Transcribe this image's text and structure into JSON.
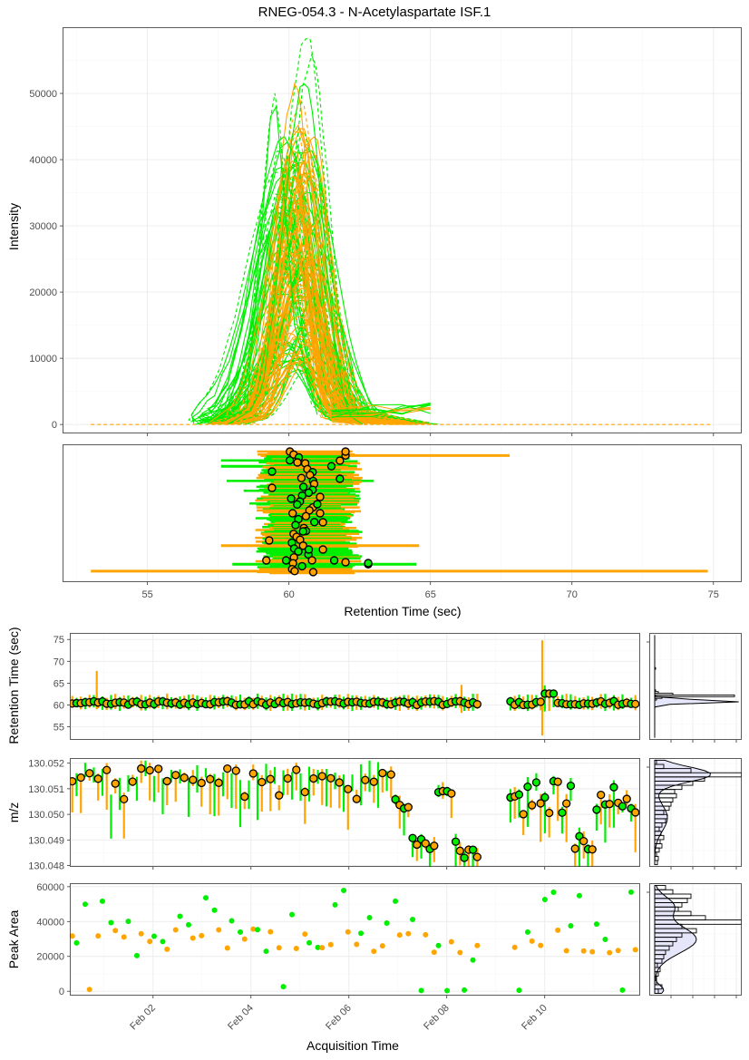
{
  "title": "RNEG-054.3 - N-Acetylaspartate ISF.1",
  "colors": {
    "orange": "#FFA500",
    "green": "#00EE00",
    "panel_border": "#333333",
    "grid_major": "#EBEBEB",
    "grid_minor": "#F5F5F5",
    "density_fill": "#E6E6FA"
  },
  "chart_data": [
    {
      "id": "chromatogram",
      "type": "line",
      "ylabel": "Intensity",
      "xlim": [
        52,
        76
      ],
      "ylim": [
        0,
        60000
      ],
      "yticks": [
        "0",
        "10000",
        "20000",
        "30000",
        "40000",
        "50000"
      ],
      "ytick_values": [
        0,
        10000,
        20000,
        30000,
        40000,
        50000
      ],
      "grid": true,
      "series": [
        {
          "color": "orange",
          "count": 55,
          "apex_rt_range": [
            59.9,
            60.9
          ],
          "apex_intensity_range": [
            9000,
            51000
          ],
          "width_sec": 1.05
        },
        {
          "color": "green",
          "count": 70,
          "apex_rt_range": [
            59.6,
            61.0
          ],
          "apex_intensity_range": [
            8000,
            58500
          ],
          "width_sec": 1.0
        },
        {
          "color": "green",
          "dashed": true,
          "peak_rt": 59.5,
          "peak_intensity": 50000
        },
        {
          "color": "green",
          "dashed": true,
          "peak_rt": 60.6,
          "peak_intensity": 58500
        },
        {
          "color": "orange",
          "dashed": true,
          "baseline_from": 53.0,
          "baseline_to": 74.9,
          "baseline_intensity": 0
        }
      ]
    },
    {
      "id": "rt_ranges",
      "type": "scatter",
      "xlabel": "Retention Time (sec)",
      "xlim": [
        52,
        76
      ],
      "xticks": [
        "55",
        "60",
        "65",
        "70",
        "75"
      ],
      "xtick_values": [
        55,
        60,
        65,
        70,
        75
      ],
      "description_of_marks": "each sample: horizontal bar = integration range (start to end RT), point = apex RT",
      "outlier_ranges": [
        {
          "color": "orange",
          "start": 59.0,
          "end": 67.8,
          "apex": 62.0
        },
        {
          "color": "orange",
          "start": 53.0,
          "end": 74.8,
          "apex": 60.2
        },
        {
          "color": "orange",
          "start": 57.6,
          "end": 64.6,
          "apex": 60.5
        },
        {
          "color": "green",
          "start": 58.0,
          "end": 64.5,
          "apex": 62.8
        },
        {
          "color": "green",
          "start": 57.6,
          "end": 62.4,
          "apex": 61.5
        }
      ],
      "typical_range": {
        "start_range": [
          58.8,
          59.5
        ],
        "end_range": [
          61.8,
          62.6
        ],
        "apex_range": [
          59.9,
          61.0
        ]
      }
    },
    {
      "id": "rt_vs_time",
      "type": "scatter",
      "ylabel": "Retention Time (sec)",
      "ylim": [
        52,
        76.5
      ],
      "yticks": [
        "55",
        "60",
        "65",
        "70",
        "75"
      ],
      "ytick_values": [
        55,
        60,
        65,
        70,
        75
      ],
      "outliers": [
        {
          "date": 0.85,
          "color": "orange",
          "low": 59.0,
          "high": 67.8
        },
        {
          "date": 8.3,
          "color": "orange",
          "low": 58.2,
          "high": 64.6
        },
        {
          "date": 9.95,
          "color": "orange",
          "low": 53.0,
          "high": 74.8
        },
        {
          "date": 10.0,
          "color": "green",
          "low": 58.5,
          "high": 64.5
        }
      ]
    },
    {
      "id": "mz_vs_time",
      "type": "scatter",
      "ylabel": "m/z",
      "ylim": [
        130.04795,
        130.0522
      ],
      "yticks": [
        "130.048",
        "130.049",
        "130.050",
        "130.051",
        "130.052"
      ],
      "ytick_values": [
        130.048,
        130.049,
        130.05,
        130.051,
        130.052
      ]
    },
    {
      "id": "area_vs_time",
      "type": "scatter",
      "ylabel": "Peak Area",
      "xlabel": "Acquisition Time",
      "ylim": [
        -2500,
        62000
      ],
      "yticks": [
        "0",
        "20000",
        "40000",
        "60000"
      ],
      "ytick_values": [
        0,
        20000,
        40000,
        60000
      ],
      "xlim_days": [
        0.3,
        11.95
      ],
      "xticks": [
        "Feb 02",
        "Feb 04",
        "Feb 06",
        "Feb 08",
        "Feb 10"
      ],
      "xtick_values": [
        2,
        4,
        6,
        8,
        10
      ]
    },
    {
      "id": "histograms",
      "type": "bar",
      "note": "marginal histograms with density overlays for Retention Time, m/z and Peak Area"
    }
  ]
}
